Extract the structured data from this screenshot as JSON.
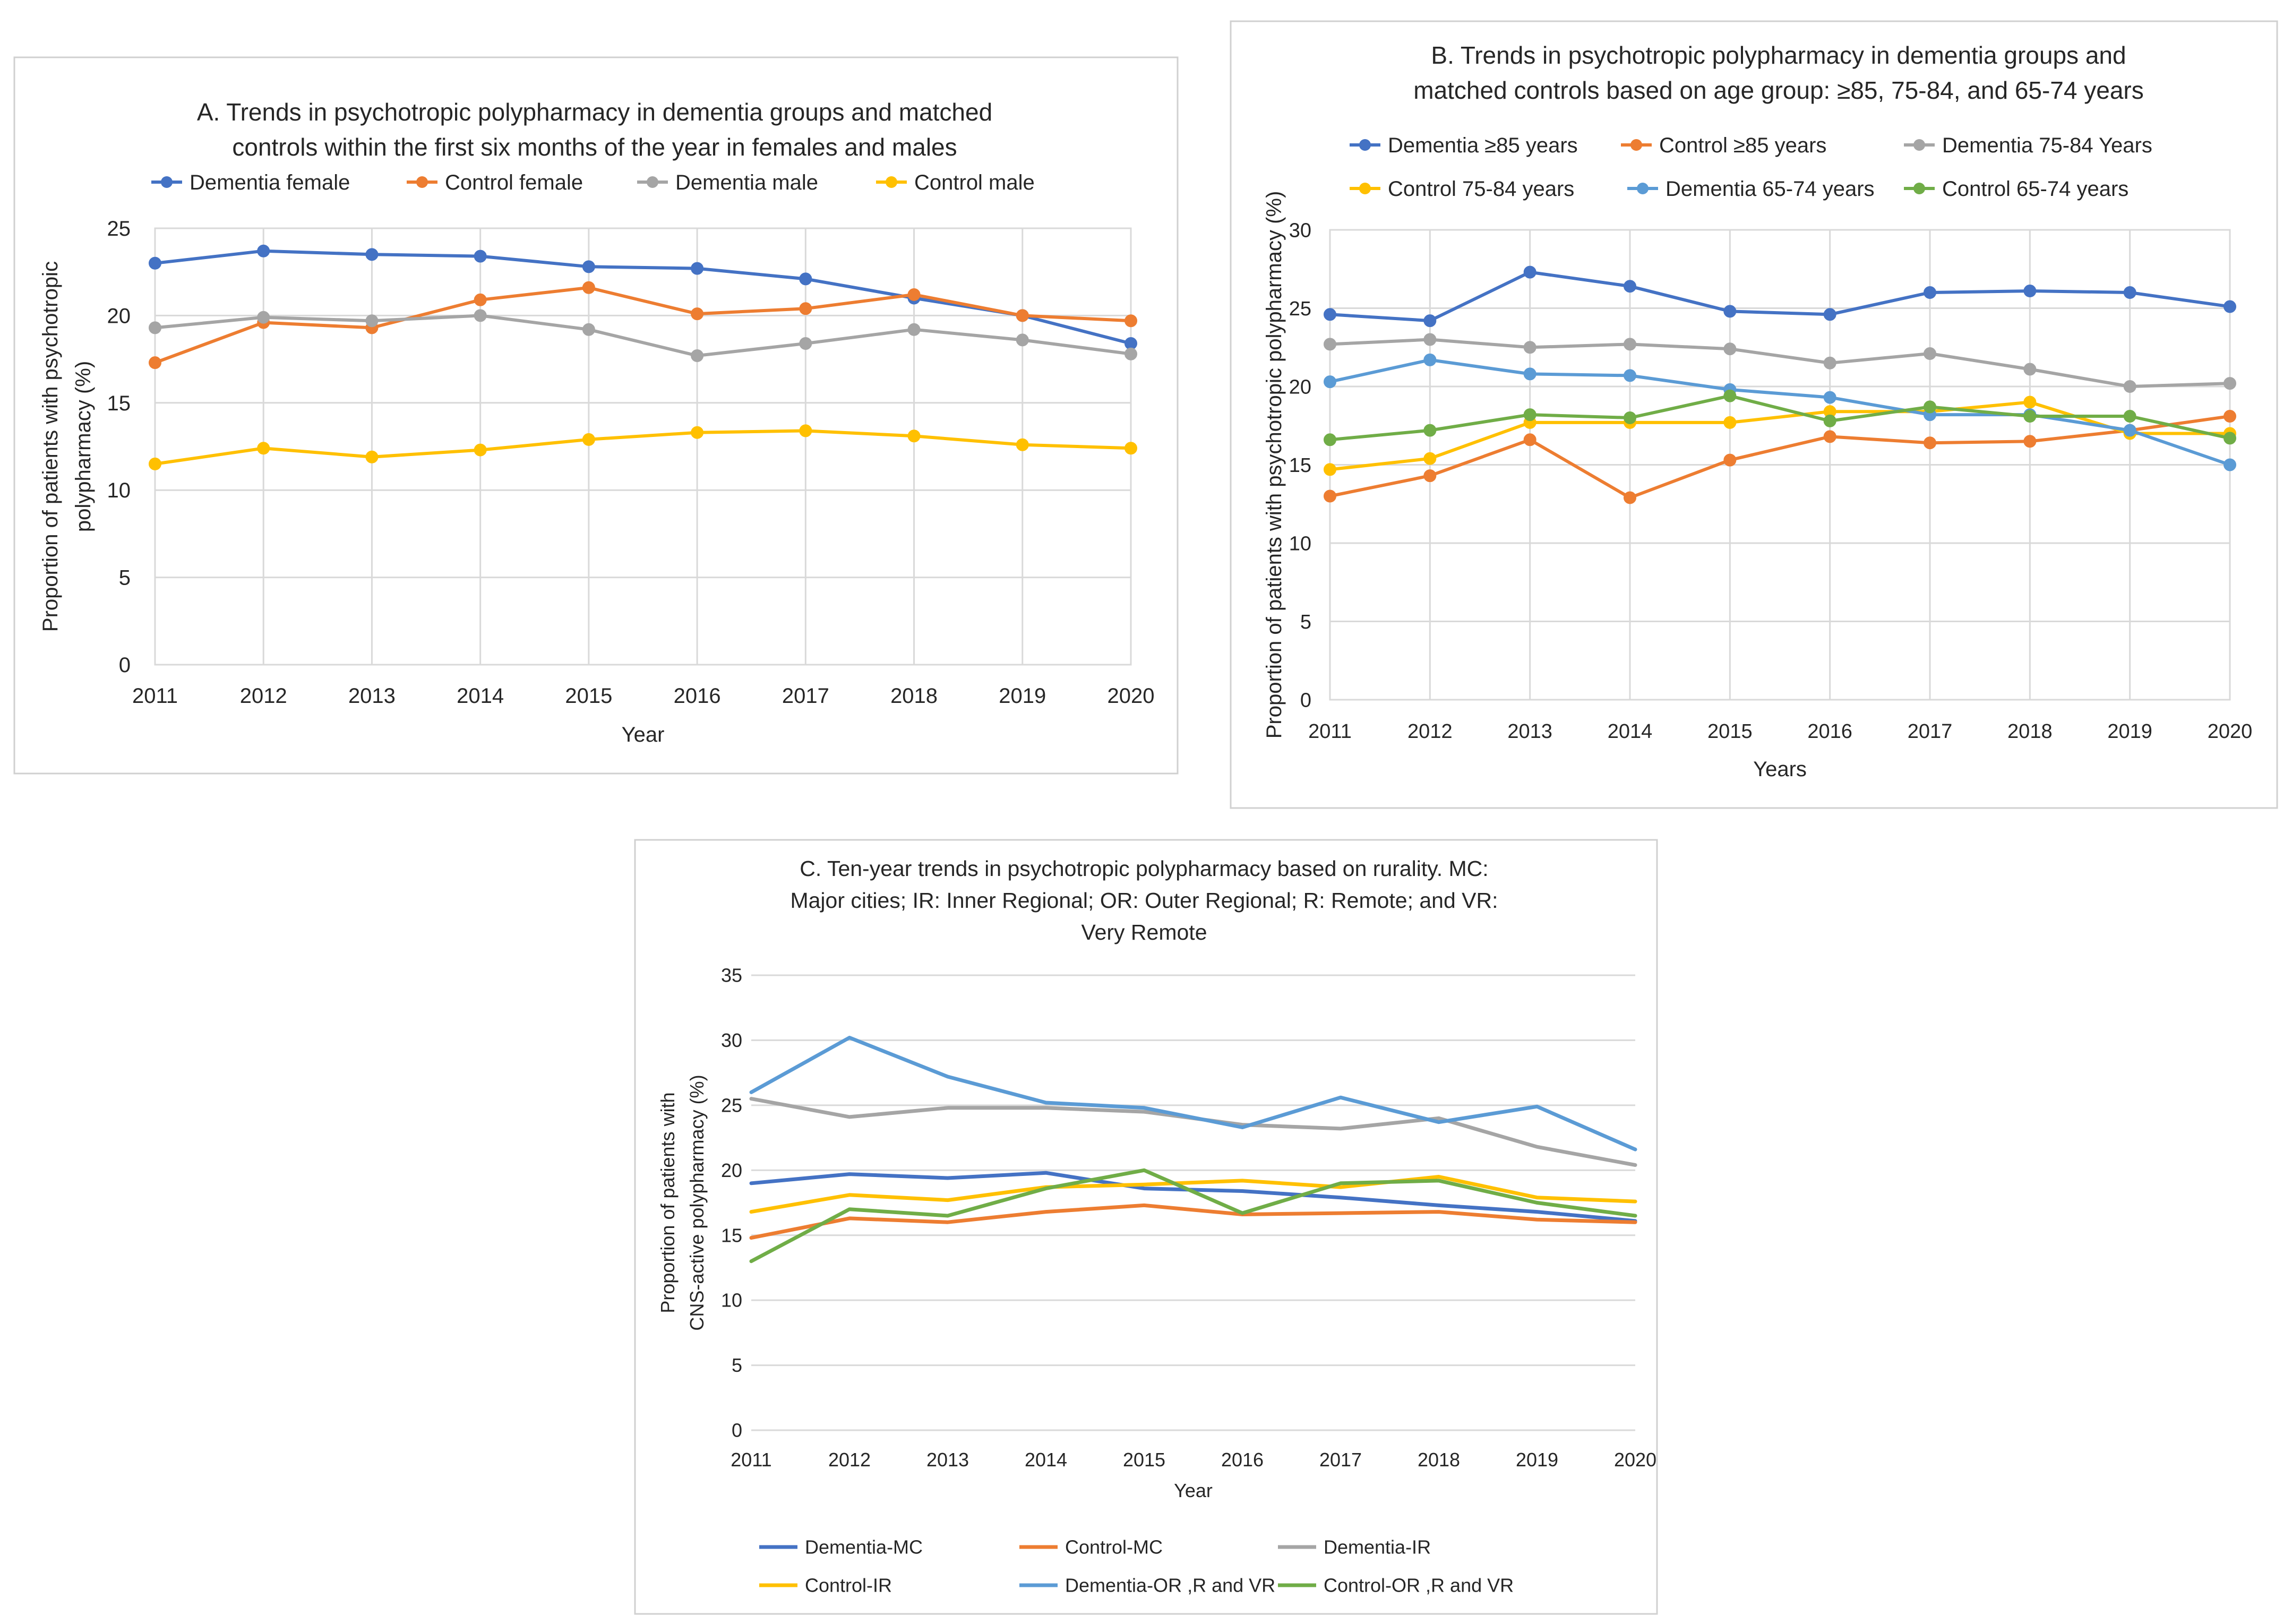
{
  "chart_data": [
    {
      "id": "A",
      "type": "line",
      "title_lines": [
        "A. Trends in psychotropic polypharmacy in dementia groups and matched",
        "controls within the first six months of the year in females and males"
      ],
      "ylabel_lines": [
        "Proportion of patients with psychotropic",
        "polypharmacy (%)"
      ],
      "xlabel": "Year",
      "ylim": [
        0,
        25
      ],
      "yticks": [
        0,
        5,
        10,
        15,
        20,
        25
      ],
      "categories": [
        "2011",
        "2012",
        "2013",
        "2014",
        "2015",
        "2016",
        "2017",
        "2018",
        "2019",
        "2020"
      ],
      "markers": true,
      "legend_position": "top",
      "series": [
        {
          "name": "Dementia female",
          "color": "#4472c4",
          "values": [
            23.0,
            23.7,
            23.5,
            23.4,
            22.8,
            22.7,
            22.1,
            21.0,
            20.0,
            18.4
          ]
        },
        {
          "name": "Control female",
          "color": "#ed7d31",
          "values": [
            17.3,
            19.6,
            19.3,
            20.9,
            21.6,
            20.1,
            20.4,
            21.2,
            20.0,
            19.7
          ]
        },
        {
          "name": "Dementia male",
          "color": "#a5a5a5",
          "values": [
            19.3,
            19.9,
            19.7,
            20.0,
            19.2,
            17.7,
            18.4,
            19.2,
            18.6,
            17.8
          ]
        },
        {
          "name": "Control male",
          "color": "#ffc000",
          "values": [
            11.5,
            12.4,
            11.9,
            12.3,
            12.9,
            13.3,
            13.4,
            13.1,
            12.6,
            12.4
          ]
        }
      ]
    },
    {
      "id": "B",
      "type": "line",
      "title_lines": [
        "B. Trends in psychotropic polypharmacy in dementia groups and",
        "matched controls based on age group: ≥85, 75-84, and 65-74 years"
      ],
      "ylabel_lines": [
        "Proportion of patients with psychotropic polypharmacy (%)"
      ],
      "xlabel": "Years",
      "ylim": [
        0,
        30
      ],
      "yticks": [
        0,
        5,
        10,
        15,
        20,
        25,
        30
      ],
      "categories": [
        "2011",
        "2012",
        "2013",
        "2014",
        "2015",
        "2016",
        "2017",
        "2018",
        "2019",
        "2020"
      ],
      "markers": true,
      "legend_position": "top",
      "series": [
        {
          "name": "Dementia  ≥85 years",
          "color": "#4472c4",
          "values": [
            24.6,
            24.2,
            27.3,
            26.4,
            24.8,
            24.6,
            26.0,
            26.1,
            26.0,
            25.1
          ]
        },
        {
          "name": "Control ≥85 years",
          "color": "#ed7d31",
          "values": [
            13.0,
            14.3,
            16.6,
            12.9,
            15.3,
            16.8,
            16.4,
            16.5,
            17.2,
            18.1
          ]
        },
        {
          "name": "Dementia 75-84 Years",
          "color": "#a5a5a5",
          "values": [
            22.7,
            23.0,
            22.5,
            22.7,
            22.4,
            21.5,
            22.1,
            21.1,
            20.0,
            20.2
          ]
        },
        {
          "name": "Control 75-84 years",
          "color": "#ffc000",
          "values": [
            14.7,
            15.4,
            17.7,
            17.7,
            17.7,
            18.4,
            18.4,
            19.0,
            17.0,
            17.0
          ]
        },
        {
          "name": "Dementia 65-74 years",
          "color": "#5b9bd5",
          "values": [
            20.3,
            21.7,
            20.8,
            20.7,
            19.8,
            19.3,
            18.2,
            18.2,
            17.2,
            15.0
          ]
        },
        {
          "name": "Control 65-74 years",
          "color": "#70ad47",
          "values": [
            16.6,
            17.2,
            18.2,
            18.0,
            19.4,
            17.8,
            18.7,
            18.1,
            18.1,
            16.7
          ]
        }
      ]
    },
    {
      "id": "C",
      "type": "line",
      "title_lines": [
        "C. Ten-year trends in psychotropic polypharmacy based on rurality. MC:",
        "Major cities; IR: Inner Regional; OR: Outer Regional; R: Remote; and VR:",
        "Very Remote"
      ],
      "ylabel_lines": [
        "Proportion of patients with",
        "CNS-active polypharmacy (%)"
      ],
      "xlabel": "Year",
      "ylim": [
        0,
        35
      ],
      "yticks": [
        0,
        5,
        10,
        15,
        20,
        25,
        30,
        35
      ],
      "categories": [
        "2011",
        "2012",
        "2013",
        "2014",
        "2015",
        "2016",
        "2017",
        "2018",
        "2019",
        "2020"
      ],
      "markers": false,
      "legend_position": "bottom",
      "series": [
        {
          "name": "Dementia-MC",
          "color": "#4472c4",
          "values": [
            19.0,
            19.7,
            19.4,
            19.8,
            18.6,
            18.4,
            17.9,
            17.3,
            16.8,
            16.1
          ]
        },
        {
          "name": "Control-MC",
          "color": "#ed7d31",
          "values": [
            14.8,
            16.3,
            16.0,
            16.8,
            17.3,
            16.6,
            16.7,
            16.8,
            16.2,
            16.0
          ]
        },
        {
          "name": "Dementia-IR",
          "color": "#a5a5a5",
          "values": [
            25.5,
            24.1,
            24.8,
            24.8,
            24.5,
            23.5,
            23.2,
            24.0,
            21.8,
            20.4
          ]
        },
        {
          "name": "Control-IR",
          "color": "#ffc000",
          "values": [
            16.8,
            18.1,
            17.7,
            18.7,
            18.9,
            19.2,
            18.7,
            19.5,
            17.9,
            17.6
          ]
        },
        {
          "name": "Dementia-OR ,R and VR",
          "color": "#5b9bd5",
          "values": [
            26.0,
            30.2,
            27.2,
            25.2,
            24.8,
            23.3,
            25.6,
            23.7,
            24.9,
            21.6
          ]
        },
        {
          "name": "Control-OR ,R and VR",
          "color": "#70ad47",
          "values": [
            13.0,
            17.0,
            16.5,
            18.6,
            20.0,
            16.7,
            19.0,
            19.2,
            17.5,
            16.5
          ]
        }
      ]
    }
  ]
}
